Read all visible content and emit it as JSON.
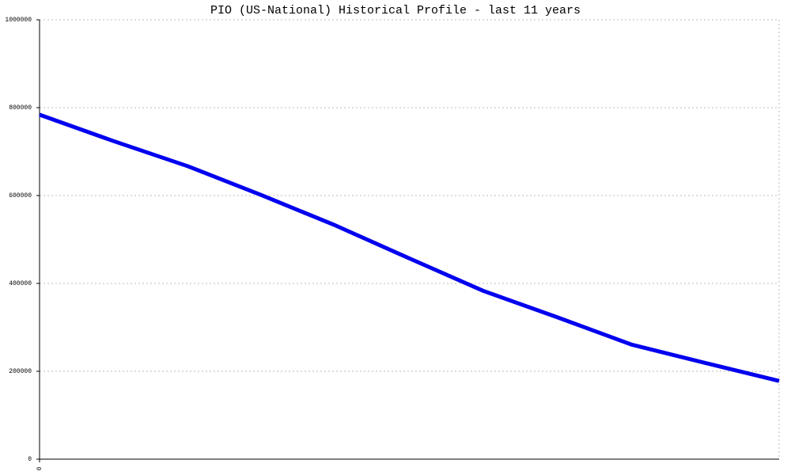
{
  "chart_data": {
    "type": "line",
    "title": "PIO (US-National) Historical Profile - last 11 years",
    "categories": [
      "0",
      null,
      null,
      null,
      null,
      null,
      null,
      null,
      null,
      null,
      null
    ],
    "series": [
      {
        "name": "PIO",
        "color": "#0000ee",
        "values": [
          784000,
          724000,
          667000,
          601000,
          532000,
          457000,
          383000,
          323000,
          261000,
          219000,
          178000
        ]
      }
    ],
    "ylim": [
      0,
      1000000
    ],
    "yticks": [
      0,
      200000,
      400000,
      600000,
      800000,
      1000000
    ],
    "grid": true
  }
}
